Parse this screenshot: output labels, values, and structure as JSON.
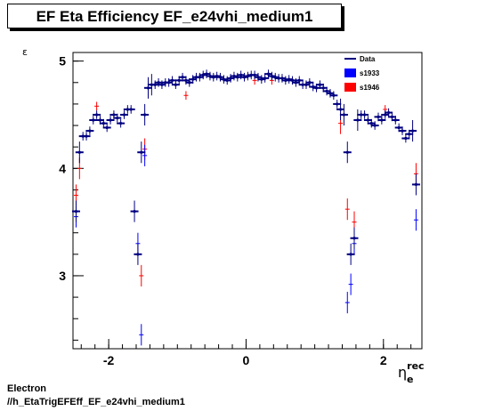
{
  "header": {
    "title": "EF Eta Efficiency EF_e24vhi_medium1"
  },
  "footer": {
    "line1": "Electron",
    "line2": "//h_EtaTrigEFEff_EF_e24vhi_medium1"
  },
  "chart_data": {
    "type": "scatter",
    "title": "EF Eta Efficiency EF_e24vhi_medium1",
    "xlabel": "η_e^rec",
    "ylabel": "ε",
    "xlim": [
      -2.52,
      2.56
    ],
    "ylim": [
      2.32,
      5.08
    ],
    "x_ticks": [
      -2,
      0,
      2
    ],
    "x_tick_labels": [
      "-2",
      "0",
      "2"
    ],
    "y_ticks": [
      3,
      4,
      5
    ],
    "y_tick_labels": [
      "3",
      "4",
      "5"
    ],
    "legend": {
      "position": "top-right",
      "entries": [
        "Data",
        "s1933",
        "s1946"
      ]
    },
    "colors": {
      "Data": "#000080",
      "s1933": "#0000ff",
      "s1946": "#ff0000"
    },
    "series": [
      {
        "name": "Data",
        "x": [
          -2.475,
          -2.425,
          -2.375,
          -2.325,
          -2.275,
          -2.225,
          -2.175,
          -2.125,
          -2.075,
          -2.025,
          -1.975,
          -1.925,
          -1.875,
          -1.825,
          -1.775,
          -1.725,
          -1.675,
          -1.625,
          -1.575,
          -1.525,
          -1.475,
          -1.425,
          -1.375,
          -1.325,
          -1.275,
          -1.225,
          -1.175,
          -1.125,
          -1.075,
          -1.025,
          -0.975,
          -0.925,
          -0.875,
          -0.825,
          -0.775,
          -0.725,
          -0.675,
          -0.625,
          -0.575,
          -0.525,
          -0.475,
          -0.425,
          -0.375,
          -0.325,
          -0.275,
          -0.225,
          -0.175,
          -0.125,
          -0.075,
          -0.025,
          0.025,
          0.075,
          0.125,
          0.175,
          0.225,
          0.275,
          0.325,
          0.375,
          0.425,
          0.475,
          0.525,
          0.575,
          0.625,
          0.675,
          0.725,
          0.775,
          0.825,
          0.875,
          0.925,
          0.975,
          1.025,
          1.075,
          1.125,
          1.175,
          1.225,
          1.275,
          1.325,
          1.375,
          1.425,
          1.475,
          1.525,
          1.575,
          1.625,
          1.675,
          1.725,
          1.775,
          1.825,
          1.875,
          1.925,
          1.975,
          2.025,
          2.075,
          2.125,
          2.175,
          2.225,
          2.275,
          2.325,
          2.375,
          2.425,
          2.475
        ],
        "y": [
          3.6,
          4.15,
          4.3,
          4.3,
          4.35,
          4.45,
          4.5,
          4.45,
          4.42,
          4.38,
          4.45,
          4.5,
          4.47,
          4.42,
          4.5,
          4.55,
          4.55,
          3.6,
          3.2,
          4.15,
          4.5,
          4.75,
          4.78,
          4.78,
          4.8,
          4.78,
          4.8,
          4.8,
          4.82,
          4.78,
          4.82,
          4.85,
          4.82,
          4.8,
          4.83,
          4.85,
          4.85,
          4.87,
          4.88,
          4.86,
          4.85,
          4.86,
          4.85,
          4.83,
          4.82,
          4.84,
          4.86,
          4.85,
          4.87,
          4.85,
          4.86,
          4.87,
          4.87,
          4.85,
          4.83,
          4.84,
          4.88,
          4.86,
          4.85,
          4.84,
          4.84,
          4.82,
          4.83,
          4.82,
          4.8,
          4.82,
          4.78,
          4.78,
          4.8,
          4.76,
          4.75,
          4.78,
          4.75,
          4.72,
          4.7,
          4.68,
          4.6,
          4.55,
          4.5,
          4.15,
          3.2,
          3.35,
          4.45,
          4.5,
          4.5,
          4.45,
          4.42,
          4.4,
          4.48,
          4.45,
          4.5,
          4.52,
          4.48,
          4.45,
          4.38,
          4.35,
          4.28,
          4.32,
          4.35,
          3.85
        ]
      },
      {
        "name": "s1933",
        "x": [
          -2.475,
          -1.575,
          -1.525,
          -1.475,
          1.475,
          1.525,
          1.575,
          2.475
        ],
        "y": [
          3.55,
          3.3,
          2.45,
          4.12,
          2.75,
          2.92,
          3.3,
          3.52
        ]
      },
      {
        "name": "s1946",
        "x": [
          -2.475,
          -2.425,
          -2.175,
          -1.525,
          -1.475,
          -0.875,
          0.125,
          0.375,
          1.375,
          1.475,
          1.575,
          2.025,
          2.475
        ],
        "y": [
          3.75,
          4.0,
          4.58,
          3.0,
          4.18,
          4.68,
          4.82,
          4.82,
          4.42,
          3.62,
          3.5,
          4.55,
          3.95
        ]
      }
    ]
  }
}
